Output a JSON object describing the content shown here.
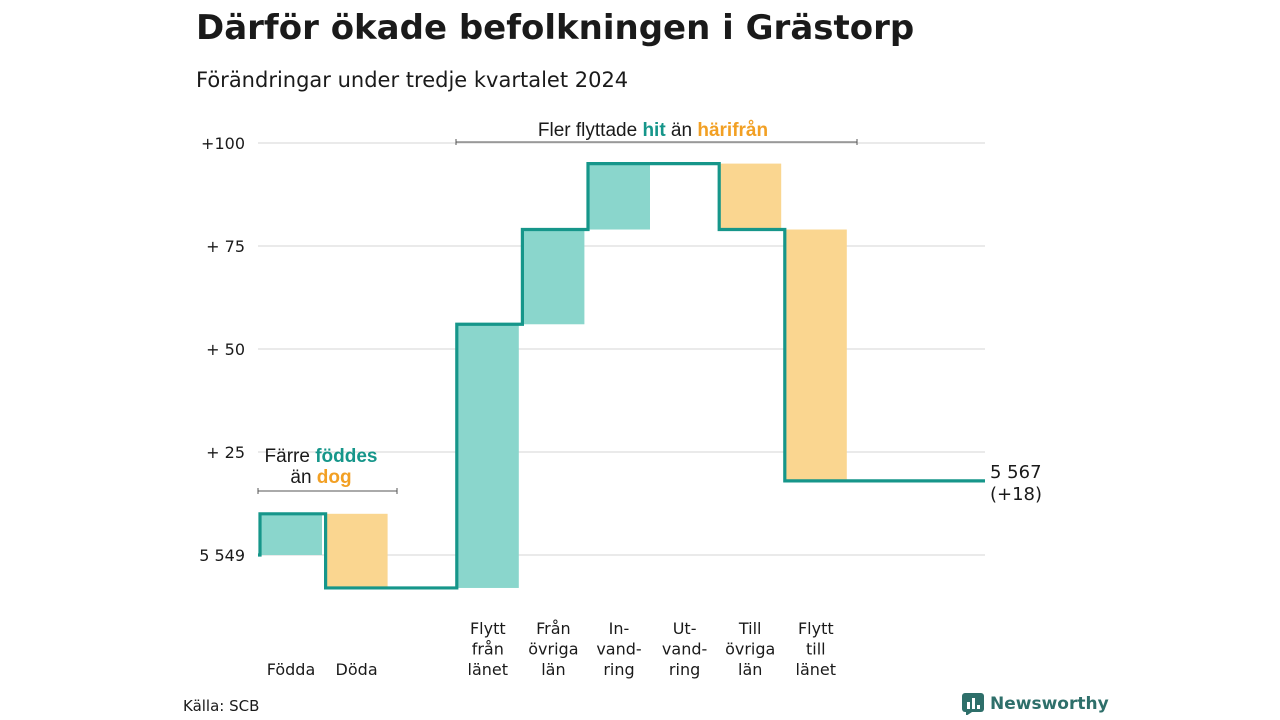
{
  "title": "Därför ökade befolkningen i Grästorp",
  "subtitle": "Förändringar under tredje kvartalet 2024",
  "source": "Källa: SCB",
  "brand": "Newsworthy",
  "colors": {
    "increase": "#8ad6cc",
    "decrease": "#fad690",
    "line": "#16968a",
    "teal_text": "#16968a",
    "orange_text": "#f2a024"
  },
  "chart_data": {
    "type": "waterfall",
    "start_value": 5549,
    "end_label": "5 567",
    "end_change": "(+18)",
    "y_ticks": [
      {
        "value": 0,
        "label": "5 549"
      },
      {
        "value": 25,
        "label": "+ 25"
      },
      {
        "value": 50,
        "label": "+ 50"
      },
      {
        "value": 75,
        "label": "+ 75"
      },
      {
        "value": 100,
        "label": "+100"
      }
    ],
    "ylim": [
      -10,
      100
    ],
    "steps": [
      {
        "label": [
          "Födda"
        ],
        "change": 10
      },
      {
        "label": [
          "Döda"
        ],
        "change": -18
      },
      {
        "label": [],
        "change": 0
      },
      {
        "label": [
          "Flytt",
          "från",
          "länet"
        ],
        "change": 64
      },
      {
        "label": [
          "Från",
          "övriga",
          "län"
        ],
        "change": 23
      },
      {
        "label": [
          "In-",
          "vand-",
          "ring"
        ],
        "change": 16
      },
      {
        "label": [
          "Ut-",
          "vand-",
          "ring"
        ],
        "change": 0
      },
      {
        "label": [
          "Till",
          "övriga",
          "län"
        ],
        "change": -16
      },
      {
        "label": [
          "Flytt",
          "till",
          "länet"
        ],
        "change": -61
      }
    ],
    "annotations": [
      {
        "id": "births",
        "parts": [
          {
            "line": 1,
            "text": "Färre ",
            "color": "dark",
            "bold": false
          },
          {
            "line": 1,
            "text": "föddes",
            "color": "teal",
            "bold": true
          },
          {
            "line": 2,
            "text": "än ",
            "color": "dark",
            "bold": false
          },
          {
            "line": 2,
            "text": "dog",
            "color": "orange",
            "bold": true
          }
        ]
      },
      {
        "id": "migration",
        "parts": [
          {
            "line": 1,
            "text": "Fler flyttade ",
            "color": "dark",
            "bold": false
          },
          {
            "line": 1,
            "text": "hit",
            "color": "teal",
            "bold": true
          },
          {
            "line": 1,
            "text": " än ",
            "color": "dark",
            "bold": false
          },
          {
            "line": 1,
            "text": "härifrån",
            "color": "orange",
            "bold": true
          }
        ]
      }
    ]
  }
}
